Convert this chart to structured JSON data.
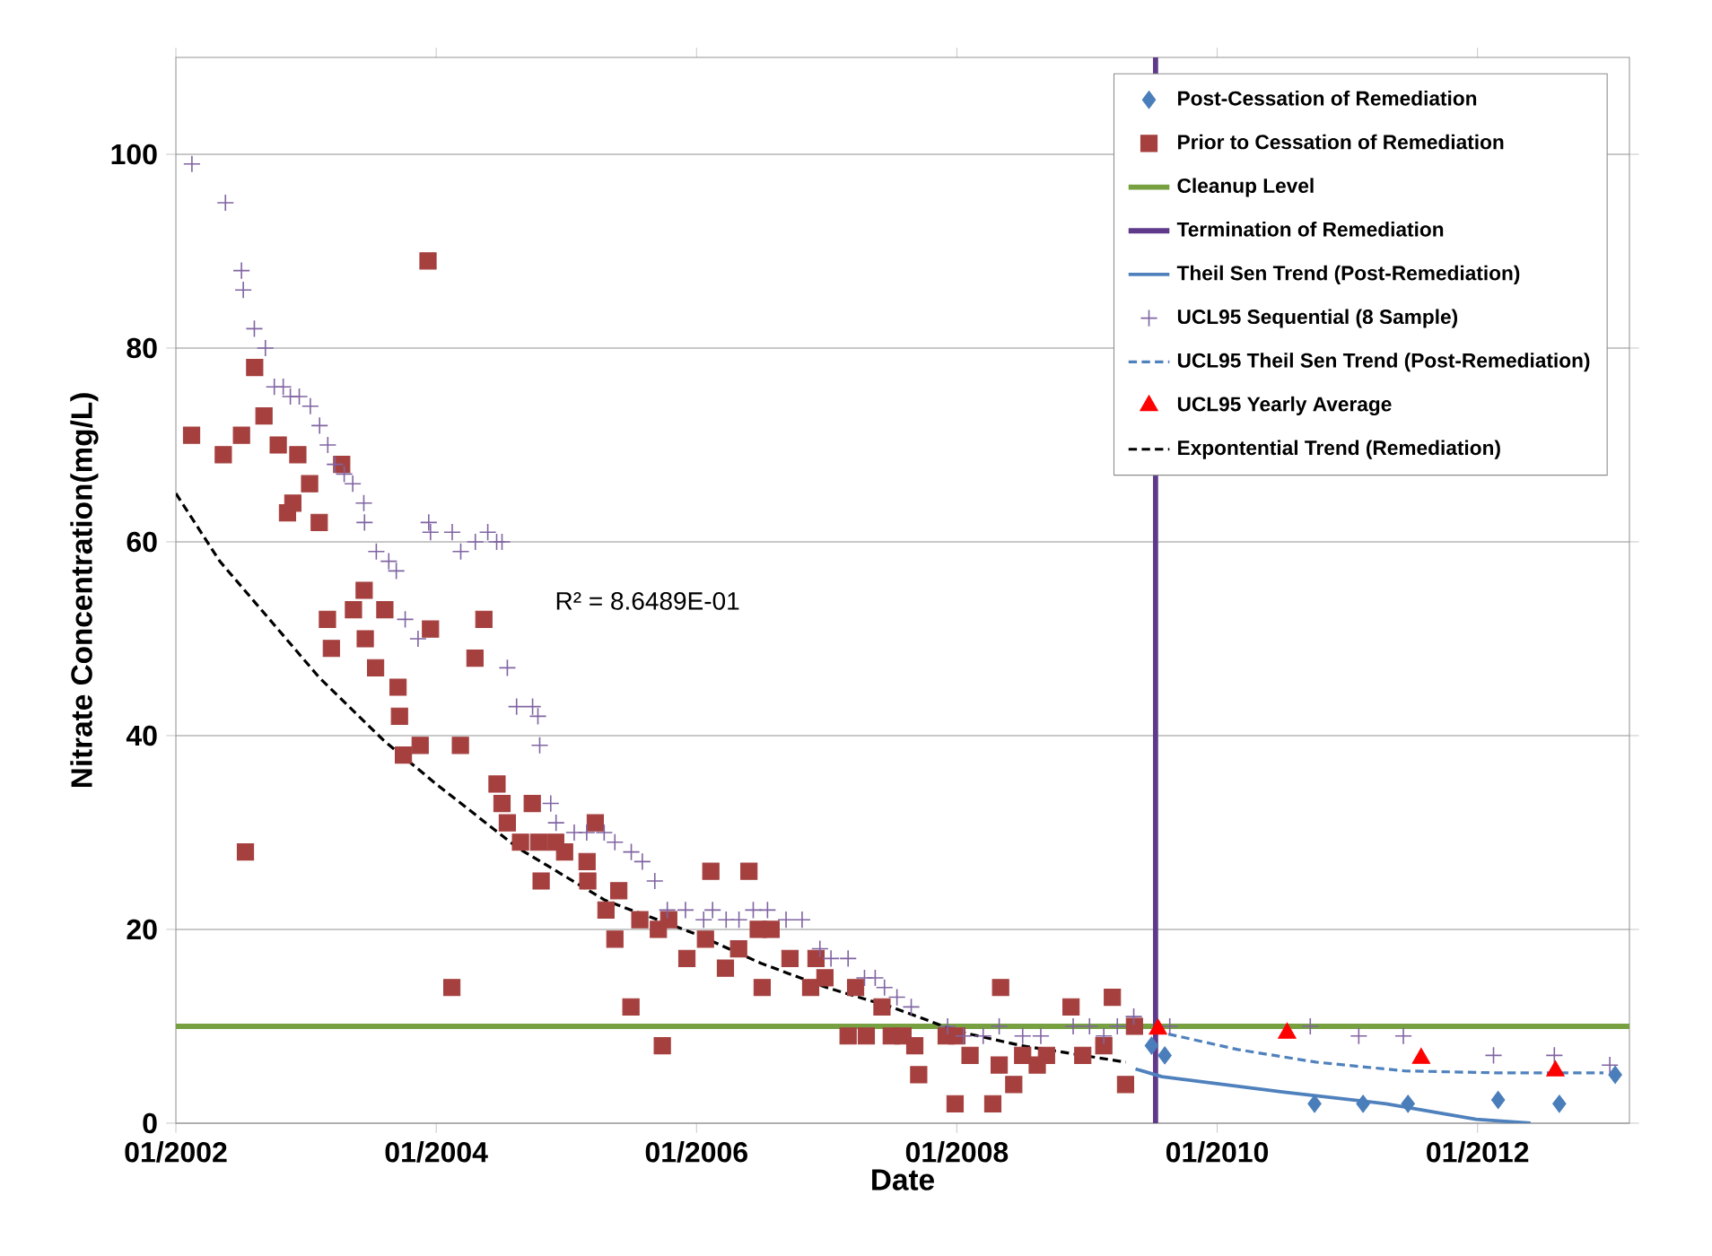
{
  "chart_data": {
    "type": "scatter",
    "xlabel": "Date",
    "ylabel": "Nitrate Concentration(mg/L)",
    "xlim": [
      "2002-01-01",
      "2013-03-03"
    ],
    "ylim": [
      0,
      110
    ],
    "xticks": [
      {
        "value": "2002-01",
        "label": "01/2002"
      },
      {
        "value": "2004-01",
        "label": "01/2004"
      },
      {
        "value": "2006-01",
        "label": "01/2006"
      },
      {
        "value": "2008-01",
        "label": "01/2008"
      },
      {
        "value": "2010-01",
        "label": "01/2010"
      },
      {
        "value": "2012-01",
        "label": "01/2012"
      }
    ],
    "yticks": [
      0,
      20,
      40,
      60,
      80,
      100
    ],
    "grid": "y",
    "legend": "top right",
    "ref_lines": [
      {
        "axis": "y",
        "value": 10,
        "label": "Cleanup Level",
        "color": "#77a041"
      },
      {
        "axis": "x",
        "value": "2009-07-12",
        "label": "Termination of Remediation",
        "color": "#5f3a8a"
      }
    ],
    "annotations": [
      "R² = 8.6489E-01"
    ],
    "series": [
      {
        "name": "Post-Cessation of Remediation",
        "marker": "diamond",
        "color": "#4a7ebb",
        "x": [
          "2009-07-01",
          "2009-08-07",
          "2010-10-01",
          "2011-02-14",
          "2011-06-20",
          "2012-02-28",
          "2012-08-18",
          "2013-01-22"
        ],
        "values": [
          8,
          7,
          2,
          2,
          2,
          2.4,
          2,
          5
        ]
      },
      {
        "name": "Prior to Cessation of Remediation",
        "marker": "square",
        "color": "#a5403f",
        "x": [
          "2002-02-14",
          "2002-05-14",
          "2002-07-04",
          "2002-07-15",
          "2002-08-10",
          "2002-09-05",
          "2002-10-15",
          "2002-11-10",
          "2002-11-25",
          "2002-12-09",
          "2003-01-11",
          "2003-02-07",
          "2003-03-02",
          "2003-03-13",
          "2003-04-11",
          "2003-05-14",
          "2003-06-13",
          "2003-06-16",
          "2003-07-15",
          "2003-08-10",
          "2003-09-16",
          "2003-09-20",
          "2003-10-01",
          "2003-11-17",
          "2003-12-09",
          "2003-12-16",
          "2004-02-14",
          "2004-03-09",
          "2004-04-19",
          "2004-05-14",
          "2004-06-20",
          "2004-07-04",
          "2004-07-19",
          "2004-08-25",
          "2004-09-27",
          "2004-10-15",
          "2004-10-22",
          "2004-12-02",
          "2004-12-27",
          "2005-02-28",
          "2005-03-02",
          "2005-03-23",
          "2005-04-22",
          "2005-05-17",
          "2005-05-28",
          "2005-07-01",
          "2005-07-26",
          "2005-09-16",
          "2005-09-27",
          "2005-10-15",
          "2005-12-05",
          "2006-01-26",
          "2006-02-10",
          "2006-03-23",
          "2006-04-29",
          "2006-05-28",
          "2006-06-23",
          "2006-07-04",
          "2006-07-29",
          "2006-09-20",
          "2006-11-17",
          "2006-12-02",
          "2006-12-27",
          "2007-03-02",
          "2007-03-23",
          "2007-04-22",
          "2007-06-05",
          "2007-07-01",
          "2007-08-03",
          "2007-09-05",
          "2007-09-16",
          "2007-12-02",
          "2007-12-27",
          "2008-01-01",
          "2008-02-07",
          "2008-04-11",
          "2008-04-29",
          "2008-05-03",
          "2008-06-09",
          "2008-07-04",
          "2008-08-14",
          "2008-09-09",
          "2008-11-17",
          "2008-12-20",
          "2009-02-17",
          "2009-03-13",
          "2009-04-19",
          "2009-05-14"
        ],
        "values": [
          71,
          69,
          71,
          28,
          78,
          73,
          70,
          63,
          64,
          69,
          66,
          62,
          52,
          49,
          68,
          53,
          55,
          50,
          47,
          53,
          45,
          42,
          38,
          39,
          89,
          51,
          14,
          39,
          48,
          52,
          35,
          33,
          31,
          29,
          33,
          29,
          25,
          29,
          28,
          27,
          25,
          31,
          22,
          19,
          24,
          12,
          21,
          20,
          8,
          21,
          17,
          19,
          26,
          16,
          18,
          26,
          20,
          14,
          20,
          17,
          14,
          17,
          15,
          9,
          14,
          9,
          12,
          9,
          9,
          8,
          5,
          9,
          2,
          9,
          7,
          2,
          6,
          14,
          4,
          7,
          6,
          7,
          12,
          7,
          8,
          13,
          4,
          10
        ]
      },
      {
        "name": "Theil Sen Trend (Post-Remediation)",
        "type": "line",
        "color": "#4f81bd",
        "line_style": "solid",
        "x": [
          "2009-05-17",
          "2009-07-30",
          "2010-07-08",
          "2011-04-20",
          "2011-12-28",
          "2012-05-29"
        ],
        "values": [
          5.6,
          4.8,
          3.2,
          2.0,
          0.4,
          0
        ]
      },
      {
        "name": "UCL95 Sequential (8 Sample)",
        "marker": "cross",
        "color": "#8064a2",
        "x": [
          "2002-02-15",
          "2002-05-20",
          "2002-07-04",
          "2002-07-09",
          "2002-08-09",
          "2002-09-09",
          "2002-10-04",
          "2002-10-29",
          "2002-11-18",
          "2002-12-13",
          "2003-01-13",
          "2003-02-08",
          "2003-03-03",
          "2003-03-23",
          "2003-04-18",
          "2003-05-12",
          "2003-06-12",
          "2003-06-14",
          "2003-07-17",
          "2003-08-21",
          "2003-09-11",
          "2003-10-06",
          "2003-11-11",
          "2003-12-11",
          "2003-12-16",
          "2004-02-15",
          "2004-03-10",
          "2004-04-20",
          "2004-05-25",
          "2004-06-19",
          "2004-07-04",
          "2004-07-19",
          "2004-08-14",
          "2004-09-28",
          "2004-10-13",
          "2004-10-18",
          "2004-11-18",
          "2004-12-03",
          "2005-01-23",
          "2005-02-27",
          "2005-04-17",
          "2005-05-17",
          "2005-07-02",
          "2005-08-02",
          "2005-09-06",
          "2005-10-11",
          "2005-12-01",
          "2006-01-21",
          "2006-02-15",
          "2006-03-25",
          "2006-04-30",
          "2006-06-09",
          "2006-07-19",
          "2006-09-09",
          "2006-10-24",
          "2006-12-13",
          "2007-01-13",
          "2007-03-02",
          "2007-04-17",
          "2007-05-17",
          "2007-06-12",
          "2007-07-17",
          "2007-08-26",
          "2007-12-06",
          "2008-01-20",
          "2008-03-15",
          "2008-04-29",
          "2008-07-04",
          "2008-08-24",
          "2008-11-23",
          "2009-01-08",
          "2009-02-17",
          "2009-03-27",
          "2009-05-12",
          "2009-08-21",
          "2010-09-19",
          "2011-02-02",
          "2011-06-07",
          "2012-02-15",
          "2012-08-04",
          "2013-01-07"
        ],
        "values": [
          99,
          95,
          88,
          86,
          82,
          80,
          76,
          76,
          75,
          75,
          74,
          72,
          70,
          68,
          67,
          66,
          64,
          62,
          59,
          58,
          57,
          52,
          50,
          62,
          61,
          61,
          59,
          60,
          61,
          60,
          60,
          47,
          43,
          43,
          42,
          39,
          33,
          31,
          30,
          30,
          30,
          29,
          28,
          27,
          25,
          22,
          22,
          21,
          22,
          21,
          21,
          22,
          22,
          21,
          21,
          18,
          17,
          17,
          15,
          15,
          14,
          13,
          12,
          10,
          9,
          9,
          10,
          9,
          9,
          10,
          10,
          9,
          10,
          11,
          10,
          10,
          9,
          9,
          7,
          7,
          6
        ]
      },
      {
        "name": "UCL95 Theil Sen Trend (Post-Remediation)",
        "type": "line",
        "color": "#4f81bd",
        "line_style": "dashed",
        "x": [
          "2009-07-12",
          "2010-02-28",
          "2010-10-05",
          "2011-06-10",
          "2012-02-17",
          "2012-12-20"
        ],
        "values": [
          9.5,
          7.6,
          6.3,
          5.4,
          5.2,
          5.2
        ]
      },
      {
        "name": "UCL95 Yearly Average",
        "marker": "triangle",
        "color": "#ff0000",
        "x": [
          "2009-07-19",
          "2010-07-16",
          "2011-07-27",
          "2012-08-07"
        ],
        "values": [
          9.7,
          9.3,
          6.7,
          5.4
        ]
      },
      {
        "name": "Expontential Trend (Remediation)",
        "type": "line",
        "color": "#000000",
        "line_style": "dashed",
        "x": [
          "2002-01-01",
          "2002-05-04",
          "2002-09-09",
          "2003-02-07",
          "2003-08-07",
          "2004-01-01",
          "2004-08-18",
          "2005-04-20",
          "2006-01-01",
          "2006-07-01",
          "2007-01-01",
          "2007-07-01",
          "2008-01-01",
          "2008-07-01",
          "2009-04-20"
        ],
        "values": [
          65,
          58,
          52.5,
          46,
          39.5,
          35,
          28.4,
          23,
          19.5,
          16.5,
          14,
          12,
          9.5,
          8,
          6.3
        ]
      }
    ]
  }
}
